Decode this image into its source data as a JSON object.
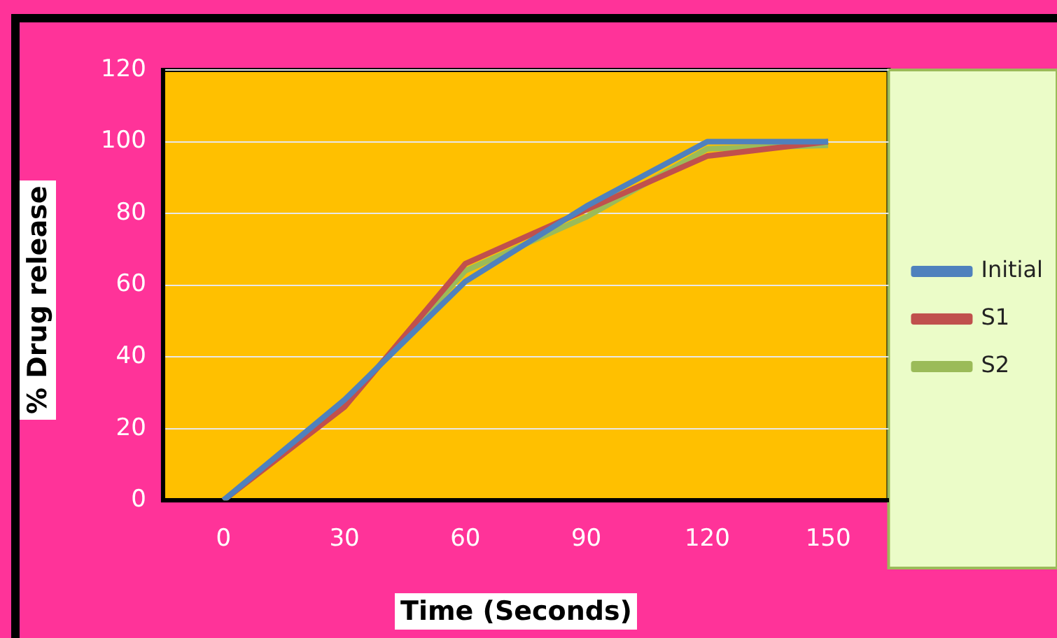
{
  "chart_data": {
    "type": "line",
    "xlabel": "Time (Seconds)",
    "ylabel": "% Drug release",
    "categories": [
      "0",
      "30",
      "60",
      "90",
      "120",
      "150"
    ],
    "series": [
      {
        "name": "Initial",
        "color": "#4f81bd",
        "values": [
          0,
          28,
          61,
          82,
          100,
          100
        ]
      },
      {
        "name": "S1",
        "color": "#c0504d",
        "values": [
          0,
          26,
          66,
          81,
          96,
          100
        ]
      },
      {
        "name": "S2",
        "color": "#9bbb59",
        "values": [
          0,
          27,
          64,
          79,
          98,
          99
        ]
      }
    ],
    "ylim": [
      0,
      120
    ],
    "yticks": [
      0,
      20,
      40,
      60,
      80,
      100,
      120
    ],
    "grid": "y",
    "legend": "right",
    "marker": "none",
    "line_style": "solid"
  }
}
